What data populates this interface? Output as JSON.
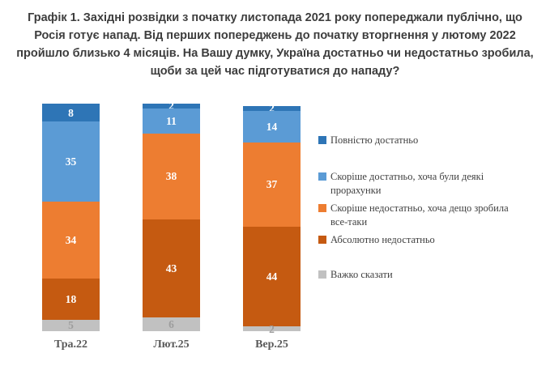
{
  "title": "Графік 1. Західні розвідки з початку листопада 2021 року попереджали публічно, що Росія готує напад. Від перших попереджень до початку вторгнення у лютому 2022 пройшло близько 4 місяців. На Вашу думку, Україна достатньо чи недостатньо зробила, щоби за цей час підготуватися до нападу?",
  "colors": {
    "title_text": "#3d3d3d",
    "axis_label_text": "#595959",
    "legend_text": "#404040",
    "value_label_on_color": "#ffffff",
    "value_label_gray": "#9d9d9d",
    "background": "#ffffff"
  },
  "chart_data": {
    "type": "bar",
    "stacked": true,
    "orientation": "vertical",
    "grid": false,
    "legend_position": "right",
    "value_labels": true,
    "axis_max": 100,
    "categories": [
      "Тра.22",
      "Лют.25",
      "Вер.25"
    ],
    "series": [
      {
        "name": "Повністю достатньо",
        "color": "#2E75B6",
        "values": [
          8,
          2,
          2
        ]
      },
      {
        "name": "Скоріше достатньо, хоча були деякі прорахунки",
        "color": "#5B9BD5",
        "values": [
          35,
          11,
          14
        ]
      },
      {
        "name": "Скоріше недостатньо, хоча дещо зробила все-таки",
        "color": "#ED7D31",
        "values": [
          34,
          38,
          37
        ]
      },
      {
        "name": "Абсолютно недостатньо",
        "color": "#C55A11",
        "values": [
          18,
          43,
          44
        ]
      },
      {
        "name": "Важко сказати",
        "color": "#C1C1C1",
        "values": [
          5,
          6,
          2
        ],
        "label_color": "#9d9d9d"
      }
    ]
  }
}
